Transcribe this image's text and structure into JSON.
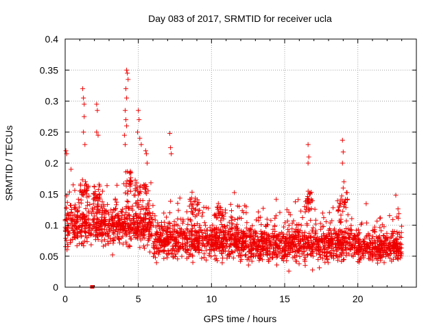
{
  "chart_data": {
    "type": "scatter",
    "title": "Day 083 of 2017, SRMTID for receiver ucla",
    "xlabel": "GPS time / hours",
    "ylabel": "SRMTID / TECUs",
    "xlim": [
      0,
      24
    ],
    "ylim": [
      0,
      0.4
    ],
    "xticks": [
      0,
      5,
      10,
      15,
      20
    ],
    "xtick_labels": [
      "0",
      "5",
      "10",
      "15",
      "20"
    ],
    "yticks": [
      0,
      0.05,
      0.1,
      0.15,
      0.2,
      0.25,
      0.3,
      0.35,
      0.4
    ],
    "ytick_labels": [
      "0",
      "0.05",
      "0.1",
      "0.15",
      "0.2",
      "0.25",
      "0.3",
      "0.35",
      "0.4"
    ],
    "grid": true,
    "marker": "+",
    "color": "#ee0000",
    "outliers": [
      {
        "x": 0.05,
        "y": 0.22
      },
      {
        "x": 0.1,
        "y": 0.215
      },
      {
        "x": 0.4,
        "y": 0.19
      },
      {
        "x": 1.2,
        "y": 0.32
      },
      {
        "x": 1.25,
        "y": 0.305
      },
      {
        "x": 1.3,
        "y": 0.295
      },
      {
        "x": 1.3,
        "y": 0.275
      },
      {
        "x": 1.25,
        "y": 0.25
      },
      {
        "x": 1.35,
        "y": 0.23
      },
      {
        "x": 2.15,
        "y": 0.295
      },
      {
        "x": 2.2,
        "y": 0.285
      },
      {
        "x": 2.15,
        "y": 0.25
      },
      {
        "x": 2.25,
        "y": 0.245
      },
      {
        "x": 4.2,
        "y": 0.35
      },
      {
        "x": 4.25,
        "y": 0.345
      },
      {
        "x": 4.3,
        "y": 0.335
      },
      {
        "x": 4.15,
        "y": 0.32
      },
      {
        "x": 4.2,
        "y": 0.305
      },
      {
        "x": 4.1,
        "y": 0.285
      },
      {
        "x": 4.15,
        "y": 0.27
      },
      {
        "x": 4.2,
        "y": 0.26
      },
      {
        "x": 4.05,
        "y": 0.245
      },
      {
        "x": 4.1,
        "y": 0.23
      },
      {
        "x": 5.0,
        "y": 0.285
      },
      {
        "x": 5.05,
        "y": 0.27
      },
      {
        "x": 4.95,
        "y": 0.25
      },
      {
        "x": 5.1,
        "y": 0.24
      },
      {
        "x": 5.2,
        "y": 0.23
      },
      {
        "x": 5.5,
        "y": 0.22
      },
      {
        "x": 5.55,
        "y": 0.215
      },
      {
        "x": 5.6,
        "y": 0.2
      },
      {
        "x": 7.15,
        "y": 0.248
      },
      {
        "x": 7.2,
        "y": 0.225
      },
      {
        "x": 7.25,
        "y": 0.215
      },
      {
        "x": 16.6,
        "y": 0.23
      },
      {
        "x": 16.65,
        "y": 0.21
      },
      {
        "x": 16.6,
        "y": 0.2
      },
      {
        "x": 18.95,
        "y": 0.237
      },
      {
        "x": 19.0,
        "y": 0.218
      },
      {
        "x": 18.95,
        "y": 0.2
      },
      {
        "x": 19.05,
        "y": 0.17
      },
      {
        "x": 19.0,
        "y": 0.16
      },
      {
        "x": 1.85,
        "y": 0.0
      }
    ],
    "cloud": [
      {
        "x_from": 0,
        "x_to": 6,
        "center": 0.1,
        "spread": 0.035
      },
      {
        "x_from": 6,
        "x_to": 12,
        "center": 0.075,
        "spread": 0.03
      },
      {
        "x_from": 12,
        "x_to": 20,
        "center": 0.07,
        "spread": 0.03
      },
      {
        "x_from": 20,
        "x_to": 23,
        "center": 0.065,
        "spread": 0.025
      }
    ]
  }
}
